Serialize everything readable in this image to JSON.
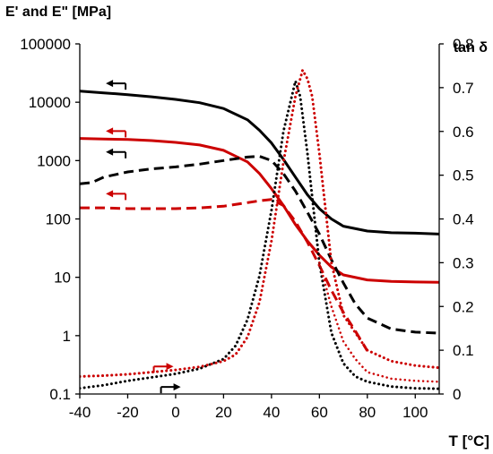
{
  "chart_data": {
    "type": "line",
    "title": "",
    "ylabel_left": "E' and E\" [MPa]",
    "ylabel_right": "tan δ",
    "xlabel": "T [°C]",
    "xlim": [
      -40,
      110
    ],
    "x_ticks": [
      -40,
      -20,
      0,
      20,
      40,
      60,
      80,
      100
    ],
    "x_tick_labels": [
      "-40",
      "-20",
      "0",
      "20",
      "40",
      "60",
      "80",
      "100"
    ],
    "ylim_left": [
      0.1,
      100000
    ],
    "y_left_scale": "log",
    "y_left_ticks": [
      0.1,
      1,
      10,
      100,
      1000,
      10000,
      100000
    ],
    "y_left_tick_labels": [
      "0.1",
      "1",
      "10",
      "100",
      "1000",
      "10000",
      "100000"
    ],
    "ylim_right": [
      0,
      0.8
    ],
    "y_right_ticks": [
      0,
      0.1,
      0.2,
      0.3,
      0.4,
      0.5,
      0.6,
      0.7,
      0.8
    ],
    "y_right_tick_labels": [
      "0",
      "0.1",
      "0.2",
      "0.3",
      "0.4",
      "0.5",
      "0.6",
      "0.7",
      "0.8"
    ],
    "grid": false,
    "legend": "none",
    "colors": {
      "black": "#000000",
      "red": "#cc0000"
    },
    "series": [
      {
        "color": "black",
        "style": "solid",
        "axis": "left",
        "x": [
          -40,
          -30,
          -20,
          -10,
          0,
          10,
          20,
          30,
          35,
          40,
          45,
          50,
          55,
          60,
          65,
          70,
          80,
          90,
          100,
          110
        ],
        "y": [
          15500,
          14500,
          13500,
          12400,
          11200,
          9800,
          7800,
          5000,
          3300,
          2000,
          1050,
          520,
          260,
          150,
          100,
          75,
          62,
          58,
          57,
          55
        ]
      },
      {
        "color": "red",
        "style": "solid",
        "axis": "left",
        "x": [
          -40,
          -30,
          -20,
          -10,
          0,
          10,
          20,
          30,
          35,
          40,
          45,
          50,
          55,
          60,
          65,
          70,
          80,
          90,
          100,
          110
        ],
        "y": [
          2400,
          2350,
          2300,
          2200,
          2050,
          1850,
          1500,
          950,
          600,
          330,
          170,
          80,
          42,
          24,
          15,
          11,
          9,
          8.5,
          8.3,
          8.2
        ]
      },
      {
        "color": "black",
        "style": "dashed",
        "axis": "left",
        "x": [
          -40,
          -35,
          -30,
          -20,
          -10,
          0,
          10,
          20,
          30,
          35,
          40,
          45,
          50,
          55,
          60,
          65,
          70,
          75,
          80,
          90,
          100,
          110
        ],
        "y": [
          400,
          420,
          520,
          640,
          720,
          780,
          870,
          1000,
          1150,
          1180,
          1000,
          600,
          300,
          130,
          55,
          20,
          8,
          3.5,
          2,
          1.3,
          1.15,
          1.1
        ]
      },
      {
        "color": "red",
        "style": "dashed",
        "axis": "left",
        "x": [
          -40,
          -30,
          -20,
          -10,
          0,
          10,
          20,
          30,
          35,
          40,
          45,
          50,
          55,
          60,
          65,
          70,
          75,
          80
        ],
        "y": [
          155,
          155,
          150,
          150,
          150,
          155,
          165,
          190,
          205,
          215,
          170,
          90,
          40,
          16,
          6,
          2.5,
          1.2,
          0.55
        ]
      },
      {
        "color": "black",
        "style": "dotted",
        "axis": "right",
        "x": [
          -40,
          -30,
          -20,
          -10,
          0,
          10,
          20,
          25,
          30,
          35,
          40,
          45,
          50,
          52,
          55,
          60,
          65,
          70,
          75,
          80,
          90,
          100,
          110
        ],
        "y": [
          0.013,
          0.02,
          0.03,
          0.038,
          0.046,
          0.058,
          0.08,
          0.11,
          0.17,
          0.27,
          0.42,
          0.6,
          0.715,
          0.68,
          0.55,
          0.3,
          0.14,
          0.07,
          0.04,
          0.028,
          0.017,
          0.013,
          0.012
        ]
      },
      {
        "color": "red",
        "style": "dotted",
        "axis": "right",
        "x": [
          -40,
          -30,
          -20,
          -10,
          0,
          10,
          20,
          25,
          30,
          35,
          40,
          45,
          50,
          53,
          55,
          57,
          60,
          65,
          70,
          80,
          90,
          100,
          110
        ],
        "y": [
          0.04,
          0.042,
          0.045,
          0.05,
          0.055,
          0.062,
          0.075,
          0.09,
          0.13,
          0.21,
          0.35,
          0.53,
          0.68,
          0.74,
          0.72,
          0.68,
          0.55,
          0.3,
          0.18,
          0.1,
          0.075,
          0.065,
          0.06
        ]
      },
      {
        "color": "red",
        "style": "solid-thin",
        "axis": "right",
        "x": [
          60,
          65,
          70,
          75,
          80,
          90,
          100,
          110
        ],
        "y": [
          0.3,
          0.2,
          0.12,
          0.08,
          0.05,
          0.035,
          0.03,
          0.028
        ]
      }
    ],
    "arrows": [
      {
        "direction": "left",
        "color": "black",
        "x": -25,
        "y": 21000,
        "axis": "left"
      },
      {
        "direction": "left",
        "color": "red",
        "x": -25,
        "y": 3200,
        "axis": "left"
      },
      {
        "direction": "left",
        "color": "black",
        "x": -25,
        "y": 1400,
        "axis": "left"
      },
      {
        "direction": "left",
        "color": "red",
        "x": -25,
        "y": 270,
        "axis": "left"
      },
      {
        "direction": "right",
        "color": "red",
        "x": -5,
        "y": 0.063,
        "axis": "right"
      },
      {
        "direction": "right",
        "color": "black",
        "x": -2,
        "y": 0.016,
        "axis": "right"
      }
    ]
  }
}
